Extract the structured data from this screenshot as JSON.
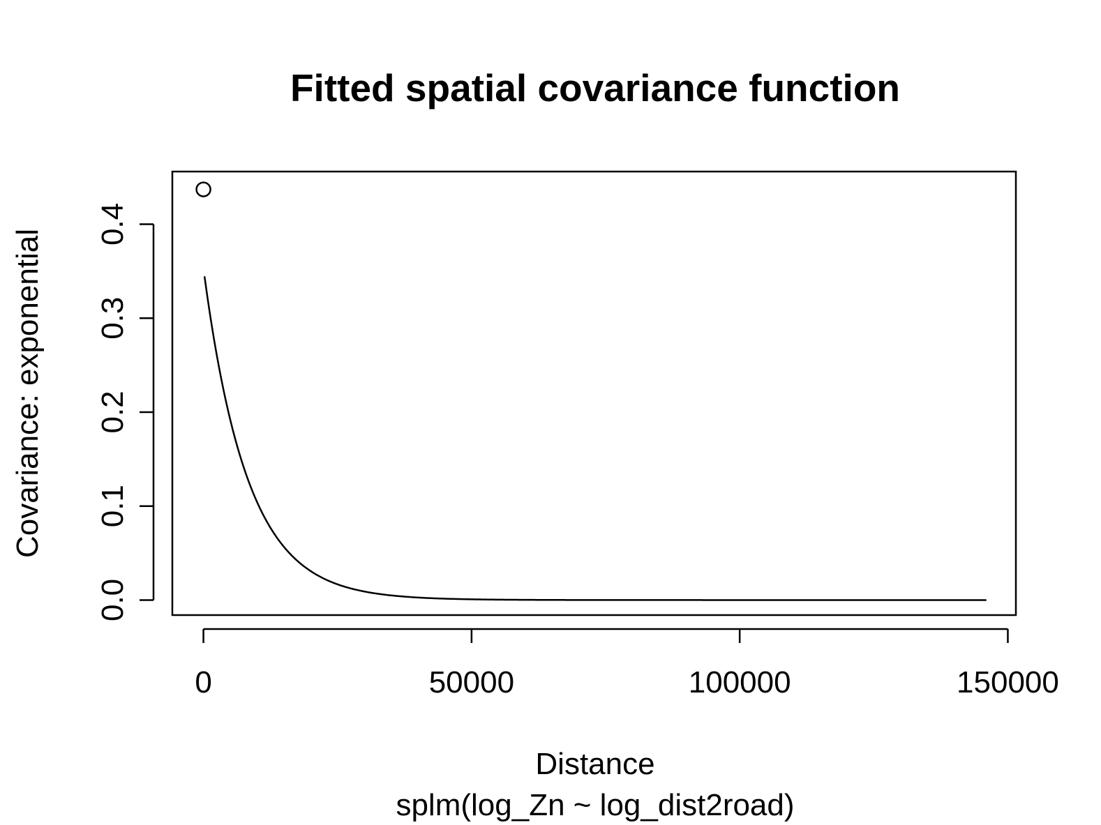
{
  "chart_data": {
    "type": "line",
    "title": "Fitted spatial covariance function",
    "xlabel": "Distance",
    "sub_label": "splm(log_Zn ~ log_dist2road)",
    "ylabel": "Covariance: exponential",
    "xlim": [
      -5800,
      151500
    ],
    "ylim": [
      -0.016,
      0.456
    ],
    "x_ticks": [
      0,
      50000,
      100000,
      150000
    ],
    "x_tick_labels": [
      "0",
      "50000",
      "100000",
      "150000"
    ],
    "y_ticks": [
      0.0,
      0.1,
      0.2,
      0.3,
      0.4
    ],
    "y_tick_labels": [
      "0.0",
      "0.1",
      "0.2",
      "0.3",
      "0.4"
    ],
    "grid": false,
    "series": [
      {
        "kind": "curve",
        "model": "exponential",
        "partial_sill": 0.353,
        "range": 8200,
        "x_start": 200,
        "x_end": 146000,
        "color": "#000000"
      },
      {
        "kind": "point",
        "marker": "open-circle",
        "x": 0,
        "y": 0.437,
        "color": "#000000"
      }
    ]
  }
}
